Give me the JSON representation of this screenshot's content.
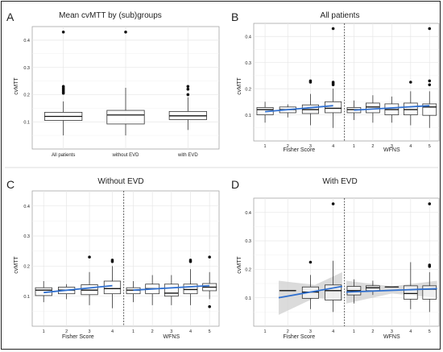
{
  "chart_data": [
    {
      "type": "box",
      "panel_letter": "A",
      "title": "Mean cvMTT by (sub)groups",
      "ylabel": "cvMTT",
      "xlabel": "",
      "ylim": [
        0.0,
        0.45
      ],
      "yticks": [
        0.1,
        0.2,
        0.3,
        0.4
      ],
      "grid": true,
      "categories": [
        "All patients",
        "without EVD",
        "with EVD"
      ],
      "boxes": [
        {
          "q1": 0.105,
          "median": 0.12,
          "q3": 0.135,
          "whisker_low": 0.05,
          "whisker_high": 0.175,
          "outliers": [
            0.43,
            0.23,
            0.225,
            0.22,
            0.215,
            0.21,
            0.205
          ]
        },
        {
          "q1": 0.092,
          "median": 0.125,
          "q3": 0.142,
          "whisker_low": 0.05,
          "whisker_high": 0.225,
          "outliers": [
            0.43
          ]
        },
        {
          "q1": 0.108,
          "median": 0.122,
          "q3": 0.138,
          "whisker_low": 0.07,
          "whisker_high": 0.19,
          "outliers": [
            0.23,
            0.22,
            0.2
          ]
        }
      ]
    },
    {
      "type": "box",
      "panel_letter": "B",
      "title": "All patients",
      "ylabel": "cvMTT",
      "ylim": [
        0.0,
        0.45
      ],
      "yticks": [
        0.1,
        0.2,
        0.3,
        0.4
      ],
      "grid": true,
      "facets": [
        {
          "xlabel": "Fisher Score",
          "categories": [
            "1",
            "2",
            "3",
            "4"
          ],
          "boxes": [
            {
              "q1": 0.1,
              "median": 0.12,
              "q3": 0.128,
              "whisker_low": 0.07,
              "whisker_high": 0.15,
              "outliers": []
            },
            {
              "q1": 0.108,
              "median": 0.12,
              "q3": 0.13,
              "whisker_low": 0.09,
              "whisker_high": 0.14,
              "outliers": []
            },
            {
              "q1": 0.105,
              "median": 0.12,
              "q3": 0.138,
              "whisker_low": 0.06,
              "whisker_high": 0.18,
              "outliers": [
                0.23,
                0.225
              ]
            },
            {
              "q1": 0.108,
              "median": 0.125,
              "q3": 0.15,
              "whisker_low": 0.05,
              "whisker_high": 0.2,
              "outliers": [
                0.43,
                0.225,
                0.22,
                0.215
              ]
            }
          ],
          "trend": [
            [
              1,
              0.112
            ],
            [
              4,
              0.135
            ]
          ]
        },
        {
          "xlabel": "WFNS",
          "categories": [
            "1",
            "2",
            "3",
            "4",
            "5"
          ],
          "boxes": [
            {
              "q1": 0.108,
              "median": 0.12,
              "q3": 0.128,
              "whisker_low": 0.08,
              "whisker_high": 0.155,
              "outliers": []
            },
            {
              "q1": 0.108,
              "median": 0.13,
              "q3": 0.145,
              "whisker_low": 0.07,
              "whisker_high": 0.175,
              "outliers": []
            },
            {
              "q1": 0.1,
              "median": 0.12,
              "q3": 0.142,
              "whisker_low": 0.07,
              "whisker_high": 0.17,
              "outliers": []
            },
            {
              "q1": 0.1,
              "median": 0.12,
              "q3": 0.145,
              "whisker_low": 0.06,
              "whisker_high": 0.19,
              "outliers": [
                0.225
              ]
            },
            {
              "q1": 0.098,
              "median": 0.13,
              "q3": 0.142,
              "whisker_low": 0.05,
              "whisker_high": 0.19,
              "outliers": [
                0.43,
                0.23,
                0.215
              ]
            }
          ],
          "trend": [
            [
              1,
              0.118
            ],
            [
              5,
              0.135
            ]
          ]
        }
      ]
    },
    {
      "type": "box",
      "panel_letter": "C",
      "title": "Without EVD",
      "ylabel": "cvMTT",
      "ylim": [
        0.0,
        0.45
      ],
      "yticks": [
        0.1,
        0.2,
        0.3,
        0.4
      ],
      "grid": true,
      "facets": [
        {
          "xlabel": "Fisher Score",
          "categories": [
            "1",
            "2",
            "3",
            "4"
          ],
          "boxes": [
            {
              "q1": 0.102,
              "median": 0.12,
              "q3": 0.128,
              "whisker_low": 0.08,
              "whisker_high": 0.15,
              "outliers": []
            },
            {
              "q1": 0.108,
              "median": 0.12,
              "q3": 0.13,
              "whisker_low": 0.09,
              "whisker_high": 0.14,
              "outliers": []
            },
            {
              "q1": 0.105,
              "median": 0.12,
              "q3": 0.138,
              "whisker_low": 0.07,
              "whisker_high": 0.18,
              "outliers": [
                0.23
              ]
            },
            {
              "q1": 0.108,
              "median": 0.125,
              "q3": 0.15,
              "whisker_low": 0.06,
              "whisker_high": 0.2,
              "outliers": [
                0.22,
                0.215
              ]
            }
          ],
          "trend": [
            [
              1,
              0.112
            ],
            [
              4,
              0.135
            ]
          ]
        },
        {
          "xlabel": "WFNS",
          "categories": [
            "1",
            "2",
            "3",
            "4",
            "5"
          ],
          "boxes": [
            {
              "q1": 0.108,
              "median": 0.12,
              "q3": 0.128,
              "whisker_low": 0.08,
              "whisker_high": 0.15,
              "outliers": []
            },
            {
              "q1": 0.108,
              "median": 0.125,
              "q3": 0.14,
              "whisker_low": 0.07,
              "whisker_high": 0.17,
              "outliers": []
            },
            {
              "q1": 0.1,
              "median": 0.11,
              "q3": 0.14,
              "whisker_low": 0.07,
              "whisker_high": 0.17,
              "outliers": []
            },
            {
              "q1": 0.108,
              "median": 0.122,
              "q3": 0.14,
              "whisker_low": 0.07,
              "whisker_high": 0.19,
              "outliers": [
                0.22,
                0.215
              ]
            },
            {
              "q1": 0.118,
              "median": 0.13,
              "q3": 0.142,
              "whisker_low": 0.09,
              "whisker_high": 0.18,
              "outliers": [
                0.23,
                0.065
              ]
            }
          ],
          "trend": [
            [
              1,
              0.12
            ],
            [
              5,
              0.135
            ]
          ]
        }
      ]
    },
    {
      "type": "box",
      "panel_letter": "D",
      "title": "With EVD",
      "ylabel": "cvMTT",
      "ylim": [
        0.0,
        0.45
      ],
      "yticks": [
        0.1,
        0.2,
        0.3,
        0.4
      ],
      "grid": true,
      "facets": [
        {
          "xlabel": "Fisher Score",
          "categories": [
            "1",
            "2",
            "3",
            "4"
          ],
          "boxes": [
            null,
            {
              "q1": 0.125,
              "median": 0.125,
              "q3": 0.125,
              "whisker_low": 0.125,
              "whisker_high": 0.125,
              "outliers": []
            },
            {
              "q1": 0.098,
              "median": 0.12,
              "q3": 0.138,
              "whisker_low": 0.06,
              "whisker_high": 0.18,
              "outliers": [
                0.225
              ]
            },
            {
              "q1": 0.092,
              "median": 0.125,
              "q3": 0.145,
              "whisker_low": 0.05,
              "whisker_high": 0.23,
              "outliers": [
                0.43
              ]
            }
          ],
          "trend": [
            [
              1.6,
              0.1
            ],
            [
              4.4,
              0.14
            ]
          ],
          "ci_band": [
            [
              1.6,
              0.04,
              0.16
            ],
            [
              3.2,
              0.1,
              0.145
            ],
            [
              4.4,
              0.09,
              0.19
            ]
          ]
        },
        {
          "xlabel": "WFNS",
          "categories": [
            "1",
            "2",
            "3",
            "4",
            "5"
          ],
          "boxes": [
            {
              "q1": 0.11,
              "median": 0.125,
              "q3": 0.14,
              "whisker_low": 0.08,
              "whisker_high": 0.165,
              "outliers": []
            },
            {
              "q1": 0.125,
              "median": 0.135,
              "q3": 0.142,
              "whisker_low": 0.11,
              "whisker_high": 0.16,
              "outliers": []
            },
            {
              "q1": 0.138,
              "median": 0.138,
              "q3": 0.138,
              "whisker_low": 0.138,
              "whisker_high": 0.138,
              "outliers": []
            },
            {
              "q1": 0.095,
              "median": 0.115,
              "q3": 0.142,
              "whisker_low": 0.06,
              "whisker_high": 0.225,
              "outliers": []
            },
            {
              "q1": 0.095,
              "median": 0.13,
              "q3": 0.142,
              "whisker_low": 0.05,
              "whisker_high": 0.19,
              "outliers": [
                0.43,
                0.215,
                0.21
              ]
            }
          ],
          "trend": [
            [
              0.6,
              0.12
            ],
            [
              5.4,
              0.132
            ]
          ],
          "ci_band": [
            [
              0.6,
              0.08,
              0.16
            ],
            [
              3.0,
              0.115,
              0.14
            ],
            [
              5.4,
              0.1,
              0.16
            ]
          ]
        }
      ]
    }
  ],
  "colors": {
    "trend_line": "#2f6fcf",
    "ci_band": "#cfcfcf",
    "grid": "#e6e6e6",
    "box_stroke": "#333333",
    "panel_border": "#999999"
  }
}
